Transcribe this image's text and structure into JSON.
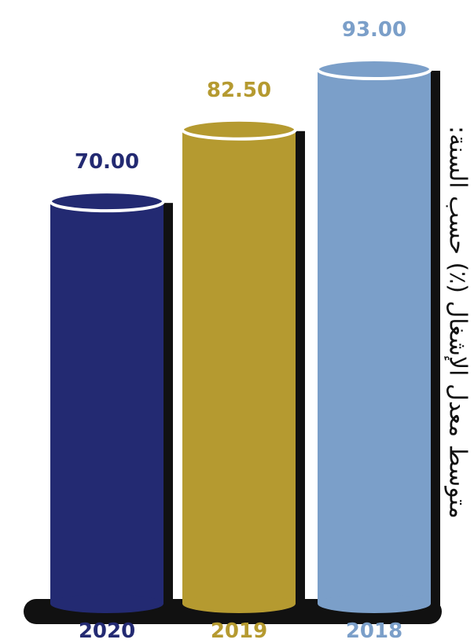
{
  "chart_data": {
    "type": "bar",
    "title": "",
    "xlabel": "",
    "ylabel": "متوسط معدل الإشغال (٪) حسب السنة:",
    "categories": [
      "2020",
      "2019",
      "2018"
    ],
    "values": [
      70.0,
      82.5,
      93.0
    ],
    "value_labels": [
      "70.00",
      "82.50",
      "93.00"
    ],
    "colors": [
      "#232a72",
      "#b59a30",
      "#7b9fc9"
    ],
    "shadow_color": "#111111",
    "ylim": [
      0,
      93
    ],
    "grid": false,
    "legend": "none"
  }
}
